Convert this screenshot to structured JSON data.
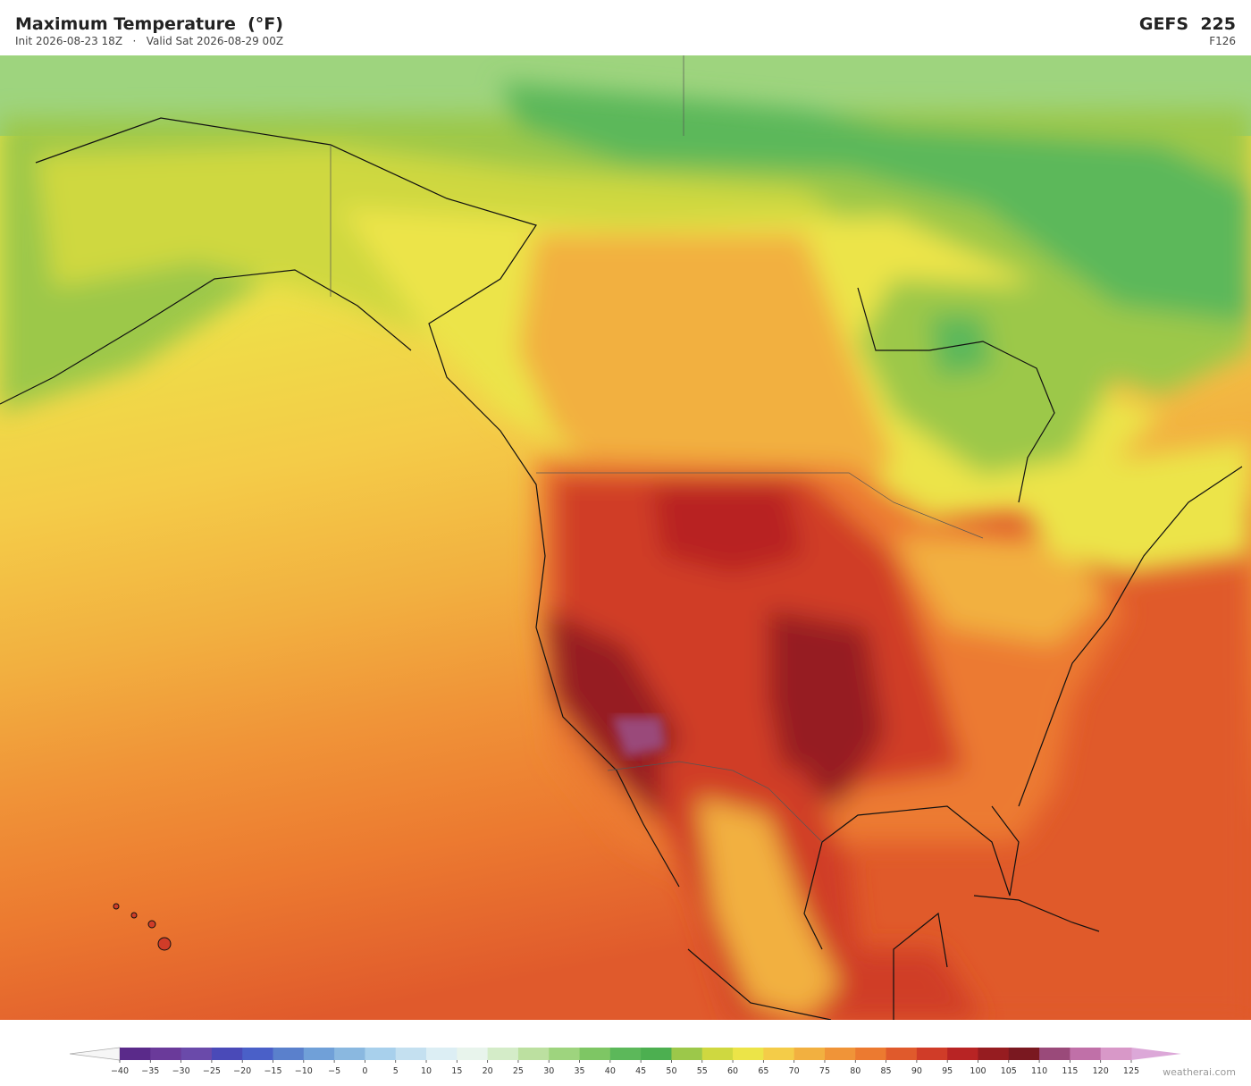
{
  "header": {
    "title": "Maximum Temperature  (°F)",
    "init": "Init 2026-08-23 18Z",
    "separator": "·",
    "valid": "Valid Sat 2026-08-29 00Z",
    "model": "GEFS  225",
    "forecast_hour": "F126"
  },
  "colorbar": {
    "ticks": [
      {
        "value": -40,
        "label": "−40"
      },
      {
        "value": -35,
        "label": "−35"
      },
      {
        "value": -30,
        "label": "−30"
      },
      {
        "value": -25,
        "label": "−25"
      },
      {
        "value": -20,
        "label": "−20"
      },
      {
        "value": -15,
        "label": "−15"
      },
      {
        "value": -10,
        "label": "−10"
      },
      {
        "value": -5,
        "label": "−5"
      },
      0,
      5,
      10,
      15,
      20,
      25,
      30,
      35,
      40,
      45,
      50,
      55,
      60,
      65,
      70,
      75,
      80,
      85,
      90,
      95,
      100,
      105,
      110,
      115,
      120,
      125
    ],
    "colors": [
      "#5a2a8a",
      "#6a3a9a",
      "#6a4aaa",
      "#4a4ab8",
      "#4a60c8",
      "#5a80cc",
      "#70a0d8",
      "#8ab8e0",
      "#a8d0ec",
      "#c4e0f0",
      "#dceef4",
      "#e8f4ec",
      "#d4ecc8",
      "#bce0a0",
      "#9ed47e",
      "#7ec664",
      "#5cb85a",
      "#4caf50",
      "#9cc84a",
      "#cfd840",
      "#ece448",
      "#f4cc48",
      "#f2b040",
      "#f09438",
      "#ec7a30",
      "#e05a2c",
      "#d03c28",
      "#b82424",
      "#961c20",
      "#7a1820",
      "#9a4a7a",
      "#c070a8",
      "#d898c8"
    ],
    "under_color": "#f6f6f6",
    "over_color": "#dca8d8"
  },
  "footer": {
    "brand": "weatherai.com"
  }
}
